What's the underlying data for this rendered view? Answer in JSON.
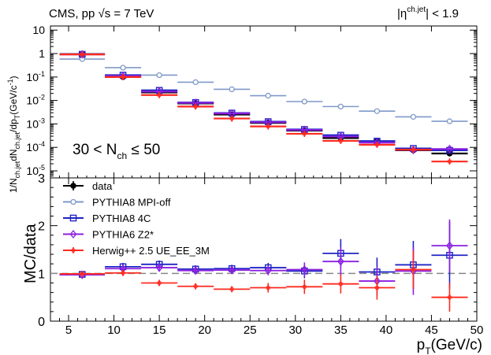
{
  "chart_data": [
    {
      "type": "scatter",
      "panel": "top",
      "title_left": "CMS, pp √s = 7 TeV",
      "title_right": "|η^(ch.jet)| < 1.9",
      "title_right_parts": {
        "eta": "|η",
        "sup": "ch.jet",
        "rest": "| < 1.9"
      },
      "ylabel": "1/N_ch.jet dN_ch.jet/dp_T (GeV/c^-1)",
      "ylabel_parts": {
        "t1": "1/N",
        "s1": "ch.jet",
        "t2": "dN",
        "s2": "ch.jet",
        "t3": "/dp",
        "s3": "T",
        "t4": "(GeV/c",
        "s4": "-1",
        "t5": ")"
      },
      "yscale": "log",
      "ylim": [
        5e-06,
        15
      ],
      "ytick_labels": [
        {
          "base": "10",
          "exp": "-5",
          "value": 1e-05
        },
        {
          "base": "10",
          "exp": "-4",
          "value": 0.0001
        },
        {
          "base": "10",
          "exp": "-3",
          "value": 0.001
        },
        {
          "base": "10",
          "exp": "-2",
          "value": 0.01
        },
        {
          "base": "10",
          "exp": "-1",
          "value": 0.1
        },
        {
          "base": "1",
          "exp": "",
          "value": 1
        },
        {
          "base": "10",
          "exp": "",
          "value": 10
        }
      ],
      "annotation": {
        "lead": "30 < N",
        "sub": "ch",
        "tail": " ≤ 50"
      },
      "bins": [
        [
          4,
          9
        ],
        [
          9,
          13
        ],
        [
          13,
          17
        ],
        [
          17,
          21
        ],
        [
          21,
          25
        ],
        [
          25,
          29
        ],
        [
          29,
          33
        ],
        [
          33,
          37
        ],
        [
          37,
          41
        ],
        [
          41,
          45
        ],
        [
          45,
          49
        ]
      ],
      "series": [
        {
          "name": "data",
          "color": "#000000",
          "marker": "dot",
          "values": [
            0.95,
            0.1,
            0.022,
            0.0075,
            0.0025,
            0.0011,
            0.00052,
            0.00025,
            0.00018,
            7.5e-05,
            5.5e-05
          ]
        },
        {
          "name": "PYTHIA8 MPI-off",
          "color": "#7f99c9",
          "marker": "circle",
          "values": [
            0.58,
            0.25,
            0.12,
            0.06,
            0.03,
            0.016,
            0.009,
            0.0055,
            0.0035,
            0.002,
            0.0013
          ]
        },
        {
          "name": "PYTHIA8 4C",
          "color": "#1f24c4",
          "marker": "square",
          "values": [
            0.93,
            0.12,
            0.027,
            0.0082,
            0.0029,
            0.00125,
            0.00058,
            0.00033,
            0.000185,
            9e-05,
            7.5e-05
          ]
        },
        {
          "name": "PYTHIA6 Z2*",
          "color": "#8c1fe0",
          "marker": "diamond",
          "values": [
            0.93,
            0.11,
            0.024,
            0.0079,
            0.0028,
            0.00118,
            0.00055,
            0.00029,
            0.00016,
            7.8e-05,
            8.5e-05
          ]
        },
        {
          "name": "Herwig++ 2.5  UE_EE_3M",
          "color": "#ff2a1f",
          "marker": "plus",
          "values": [
            0.92,
            0.1,
            0.017,
            0.0055,
            0.0017,
            0.00078,
            0.00038,
            0.00019,
            0.00013,
            8e-05,
            2.5e-05
          ]
        }
      ]
    },
    {
      "type": "scatter",
      "panel": "ratio",
      "ylabel": "MC/data",
      "xlabel": "p_T(GeV/c)",
      "xlabel_parts": {
        "lead": "p",
        "sub": "T",
        "tail": "(GeV/c)"
      },
      "xlim": [
        3,
        50
      ],
      "xticks": [
        5,
        10,
        15,
        20,
        25,
        30,
        35,
        40,
        45,
        50
      ],
      "ylim": [
        0,
        3
      ],
      "yticks": [
        0,
        1,
        2,
        3
      ],
      "reference_line": 1,
      "x": [
        6.5,
        11,
        15,
        19,
        23,
        27,
        31,
        35,
        39,
        43,
        47
      ],
      "series": [
        {
          "name": "PYTHIA8 4C",
          "color": "#1f24c4",
          "marker": "square",
          "values": [
            0.98,
            1.14,
            1.19,
            1.09,
            1.1,
            1.12,
            1.05,
            1.42,
            1.03,
            1.18,
            1.38
          ],
          "errors": [
            0.05,
            0.08,
            0.08,
            0.08,
            0.08,
            0.1,
            0.15,
            0.3,
            0.3,
            0.5,
            0.7
          ]
        },
        {
          "name": "PYTHIA6 Z2*",
          "color": "#8c1fe0",
          "marker": "diamond",
          "values": [
            0.97,
            1.1,
            1.12,
            1.06,
            1.07,
            1.06,
            1.08,
            1.25,
            0.84,
            1.05,
            1.58
          ],
          "errors": [
            0.05,
            0.08,
            0.08,
            0.08,
            0.08,
            0.1,
            0.15,
            0.3,
            0.3,
            0.5,
            0.55
          ]
        },
        {
          "name": "Herwig++ 2.5  UE_EE_3M",
          "color": "#ff2a1f",
          "marker": "plus",
          "values": [
            0.99,
            1.01,
            0.8,
            0.73,
            0.67,
            0.7,
            0.72,
            0.78,
            0.7,
            1.08,
            0.5
          ],
          "errors": [
            0.05,
            0.06,
            0.06,
            0.06,
            0.06,
            0.1,
            0.15,
            0.2,
            0.25,
            0.4,
            0.3
          ]
        }
      ],
      "legend": [
        {
          "label": "data",
          "color": "#000000",
          "marker": "dot"
        },
        {
          "label": "PYTHIA8 MPI-off",
          "color": "#7f99c9",
          "marker": "circle"
        },
        {
          "label": "PYTHIA8 4C",
          "color": "#1f24c4",
          "marker": "square"
        },
        {
          "label": "PYTHIA6 Z2*",
          "color": "#8c1fe0",
          "marker": "diamond"
        },
        {
          "label": "Herwig++ 2.5  UE_EE_3M",
          "color": "#ff2a1f",
          "marker": "plus"
        }
      ]
    }
  ]
}
